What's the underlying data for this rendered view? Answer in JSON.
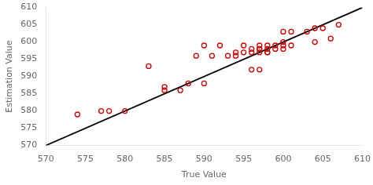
{
  "chart_data": {
    "type": "scatter",
    "xlabel": "True Value",
    "ylabel": "Estimation Value",
    "xlim": [
      570,
      610
    ],
    "ylim": [
      570,
      610
    ],
    "xticks": [
      570,
      575,
      580,
      585,
      590,
      595,
      600,
      605,
      610
    ],
    "yticks": [
      570,
      575,
      580,
      585,
      590,
      595,
      600,
      605,
      610
    ],
    "grid": false,
    "series": [
      {
        "type": "line",
        "color": "#000000",
        "line_style": "solid",
        "x": [
          570,
          610
        ],
        "values": [
          570,
          610
        ]
      },
      {
        "type": "scatter",
        "color": "#cc0000",
        "marker": "circle",
        "x": [
          574,
          577,
          578,
          580,
          585,
          583,
          585,
          587,
          588,
          590,
          589,
          591,
          590,
          592,
          593,
          594,
          595,
          594,
          595,
          596,
          596,
          597,
          597,
          597,
          597,
          598,
          596,
          597,
          598,
          598,
          598,
          599,
          599,
          600,
          600,
          600,
          601,
          600,
          601,
          603,
          604,
          604,
          605,
          606,
          607
        ],
        "values": [
          579,
          580,
          580,
          580,
          586,
          593,
          587,
          586,
          588,
          588,
          596,
          596,
          599,
          599,
          596,
          596,
          599,
          597,
          597,
          597,
          598,
          598,
          597,
          598,
          599,
          599,
          592,
          592,
          597,
          597,
          598,
          598,
          599,
          598,
          599,
          600,
          599,
          603,
          603,
          603,
          604,
          600,
          604,
          601,
          605
        ]
      }
    ]
  }
}
